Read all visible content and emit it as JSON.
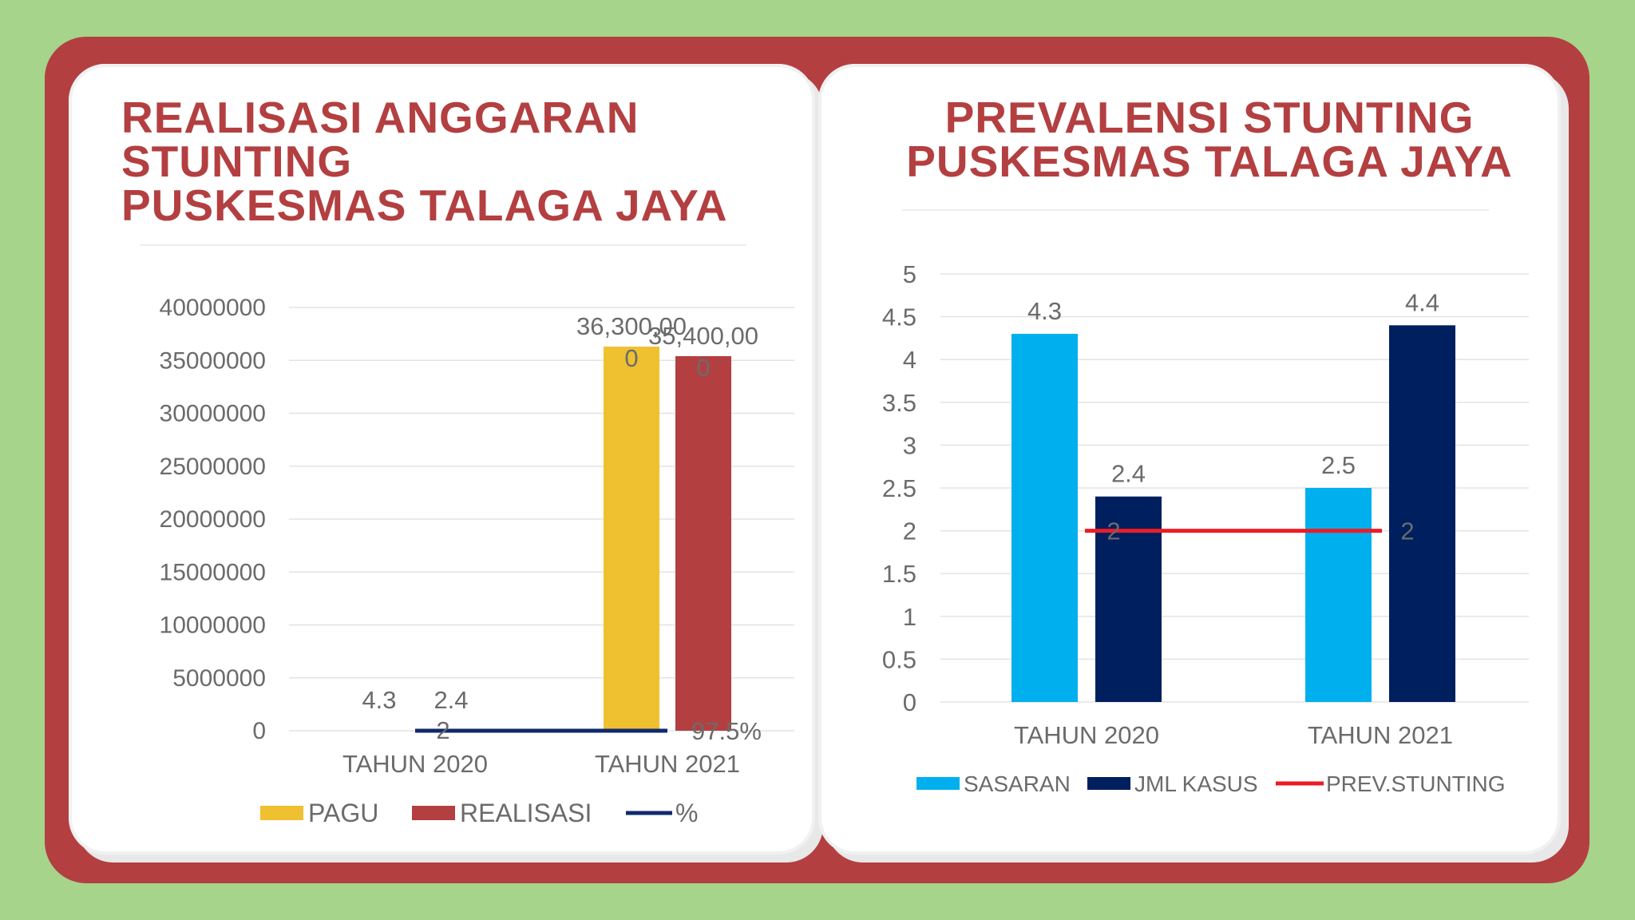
{
  "colors": {
    "background": "#a6d48a",
    "frame": "#b33f41",
    "card": "#ffffff",
    "title": "#b33f41",
    "pagu": "#efc030",
    "realisasi": "#b33f41",
    "percent_line": "#0f2a6b",
    "sasaran": "#00b0ee",
    "jml_kasus": "#001f5f",
    "prev_stunting": "#ee1b24"
  },
  "chart_data": [
    {
      "type": "bar",
      "title": "REALISASI ANGGARAN\nSTUNTING\nPUSKESMAS TALAGA JAYA",
      "categories": [
        "TAHUN 2020",
        "TAHUN 2021"
      ],
      "ylim": [
        0,
        40000000
      ],
      "yticks": [
        "0",
        "5000000",
        "10000000",
        "15000000",
        "20000000",
        "25000000",
        "30000000",
        "35000000",
        "40000000"
      ],
      "grid": true,
      "legend_position": "bottom",
      "series": [
        {
          "name": "PAGU",
          "type": "bar",
          "values": [
            4.3,
            36300000
          ],
          "labels": [
            "4.3",
            "36,300,00\n0"
          ]
        },
        {
          "name": "REALISASI",
          "type": "bar",
          "values": [
            2.4,
            35400000
          ],
          "labels": [
            "2.4",
            "35,400,00\n0"
          ]
        },
        {
          "name": "%",
          "type": "line",
          "values": [
            2,
            0.975
          ],
          "labels": [
            "2",
            "97.5%"
          ]
        }
      ]
    },
    {
      "type": "bar",
      "title": "PREVALENSI STUNTING\nPUSKESMAS TALAGA JAYA",
      "categories": [
        "TAHUN 2020",
        "TAHUN 2021"
      ],
      "ylim": [
        0,
        5
      ],
      "yticks": [
        "0",
        "0.5",
        "1",
        "1.5",
        "2",
        "2.5",
        "3",
        "3.5",
        "4",
        "4.5",
        "5"
      ],
      "grid": true,
      "legend_position": "bottom",
      "series": [
        {
          "name": "SASARAN",
          "type": "bar",
          "values": [
            4.3,
            2.5
          ],
          "labels": [
            "4.3",
            "2.5"
          ]
        },
        {
          "name": "JML KASUS",
          "type": "bar",
          "values": [
            2.4,
            4.4
          ],
          "labels": [
            "2.4",
            "4.4"
          ]
        },
        {
          "name": "PREV.STUNTING",
          "type": "line",
          "values": [
            2,
            2
          ],
          "labels": [
            "2",
            "2"
          ]
        }
      ]
    }
  ]
}
